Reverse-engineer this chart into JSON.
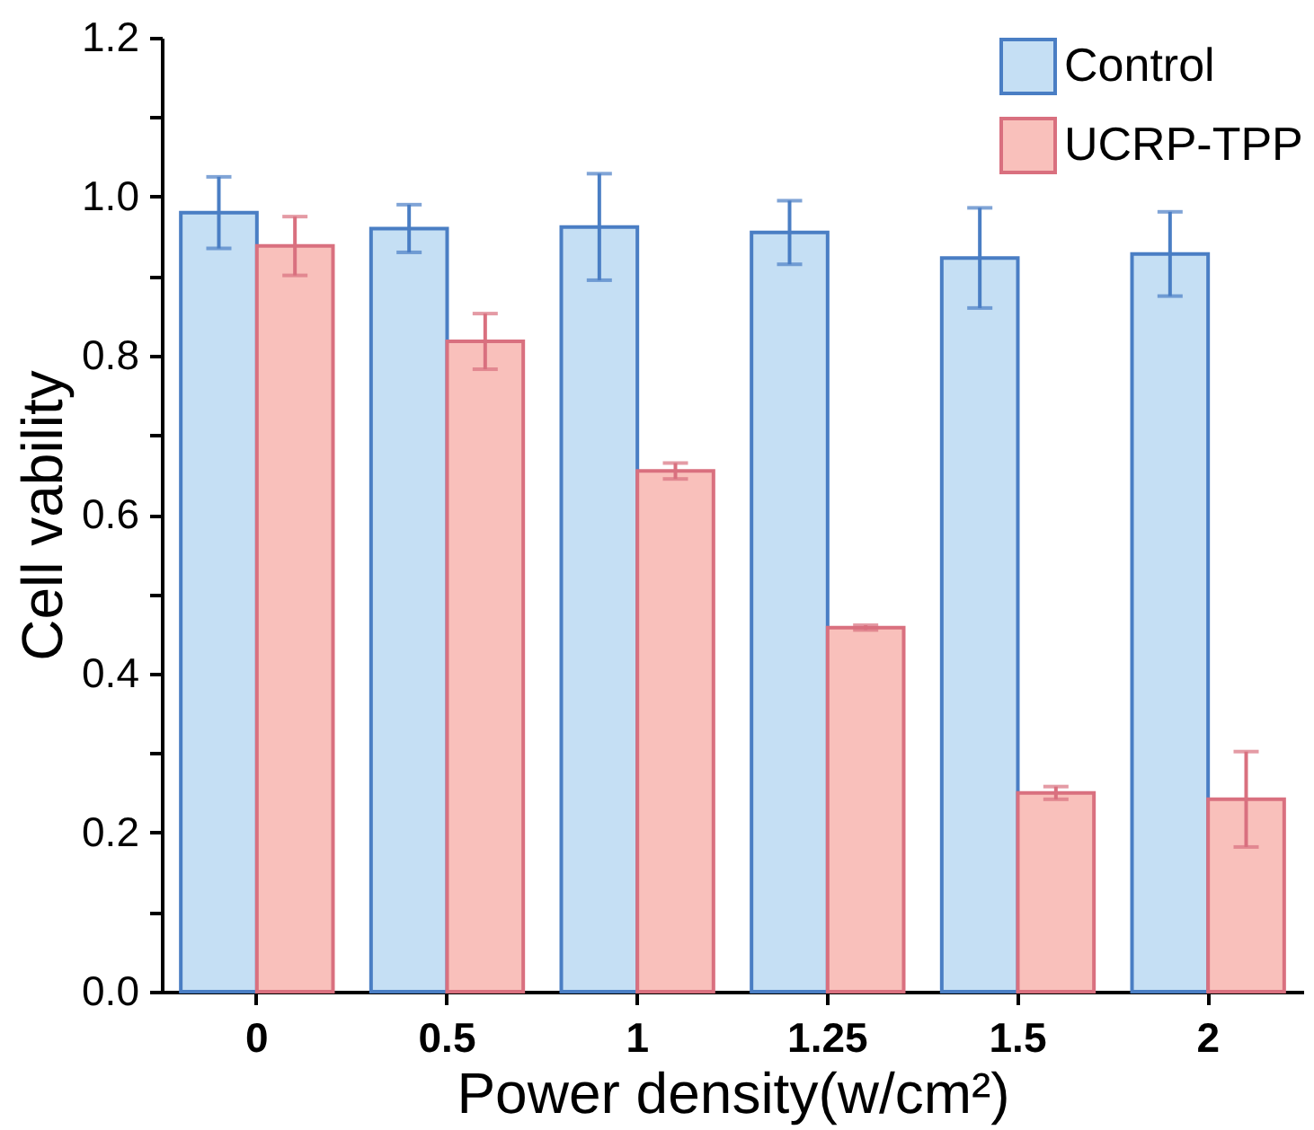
{
  "chart_data": {
    "type": "bar",
    "xlabel": "Power density(w/cm²)",
    "ylabel": "Cell vability",
    "categories": [
      "0",
      "0.5",
      "1",
      "1.25",
      "1.5",
      "2"
    ],
    "series": [
      {
        "name": "Control",
        "color": "#c5dff4",
        "values": [
          0.98,
          0.96,
          0.962,
          0.955,
          0.923,
          0.928
        ],
        "errors": [
          0.045,
          0.03,
          0.067,
          0.04,
          0.063,
          0.053
        ]
      },
      {
        "name": "UCRP-TPP",
        "color": "#f9c0bb",
        "values": [
          0.938,
          0.818,
          0.655,
          0.458,
          0.25,
          0.242
        ],
        "errors": [
          0.037,
          0.035,
          0.01,
          0.003,
          0.008,
          0.06
        ]
      }
    ],
    "ylim": [
      0,
      1.2
    ],
    "yticks": [
      {
        "value": 0,
        "label": "0.0"
      },
      {
        "value": 0.1,
        "label": null
      },
      0.2,
      {
        "value": 0.3,
        "label": null
      },
      0.4,
      {
        "value": 0.5,
        "label": null
      },
      0.6,
      {
        "value": 0.7,
        "label": null
      },
      0.8,
      {
        "value": 0.9,
        "label": null
      },
      {
        "value": 1,
        "label": "1.0"
      },
      {
        "value": 1.1,
        "label": null
      },
      1.2
    ],
    "grid": false,
    "legend": "top right"
  }
}
